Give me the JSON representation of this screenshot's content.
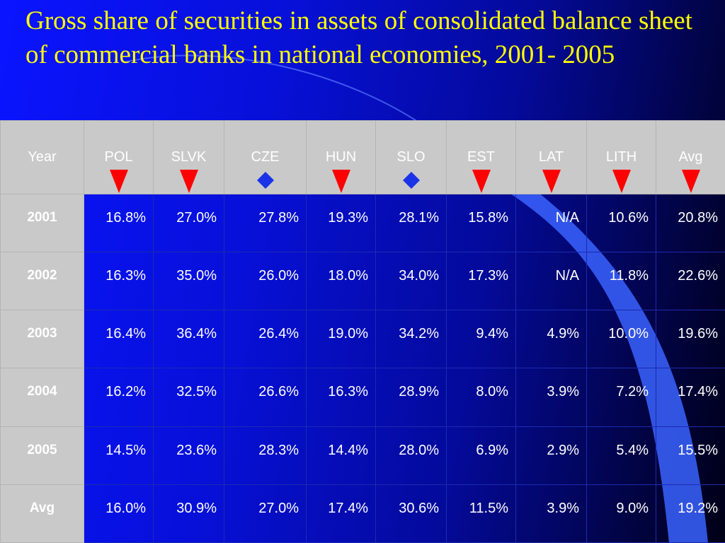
{
  "title": "Gross share of securities in assets of consolidated balance sheet of commercial banks in national economies, 2001- 2005",
  "table": {
    "headers": [
      "Year",
      "POL",
      "SLVK",
      "CZE",
      "HUN",
      "SLO",
      "EST",
      "LAT",
      "LITH",
      "Avg"
    ],
    "markers": [
      "none",
      "down-arrow",
      "down-arrow",
      "diamond",
      "down-arrow",
      "diamond",
      "down-arrow",
      "down-arrow",
      "down-arrow",
      "down-arrow"
    ],
    "marker_colors": {
      "down-arrow": "#ff0000",
      "diamond": "#1a33e6"
    },
    "rows": [
      {
        "year": "2001",
        "values": [
          "16.8%",
          "27.0%",
          "27.8%",
          "19.3%",
          "28.1%",
          "15.8%",
          "N/A",
          "10.6%",
          "20.8%"
        ]
      },
      {
        "year": "2002",
        "values": [
          "16.3%",
          "35.0%",
          "26.0%",
          "18.0%",
          "34.0%",
          "17.3%",
          "N/A",
          "11.8%",
          "22.6%"
        ]
      },
      {
        "year": "2003",
        "values": [
          "16.4%",
          "36.4%",
          "26.4%",
          "19.0%",
          "34.2%",
          "9.4%",
          "4.9%",
          "10.0%",
          "19.6%"
        ]
      },
      {
        "year": "2004",
        "values": [
          "16.2%",
          "32.5%",
          "26.6%",
          "16.3%",
          "28.9%",
          "8.0%",
          "3.9%",
          "7.2%",
          "17.4%"
        ]
      },
      {
        "year": "2005",
        "values": [
          "14.5%",
          "23.6%",
          "28.3%",
          "14.4%",
          "28.0%",
          "6.9%",
          "2.9%",
          "5.4%",
          "15.5%"
        ]
      },
      {
        "year": "Avg",
        "values": [
          "16.0%",
          "30.9%",
          "27.0%",
          "17.4%",
          "30.6%",
          "11.5%",
          "3.9%",
          "9.0%",
          "19.2%"
        ]
      }
    ]
  },
  "colors": {
    "title": "#ffff00",
    "header_bg": "#c9c9c9",
    "cell_text": "#ffffff",
    "background": "#0a14ff"
  }
}
